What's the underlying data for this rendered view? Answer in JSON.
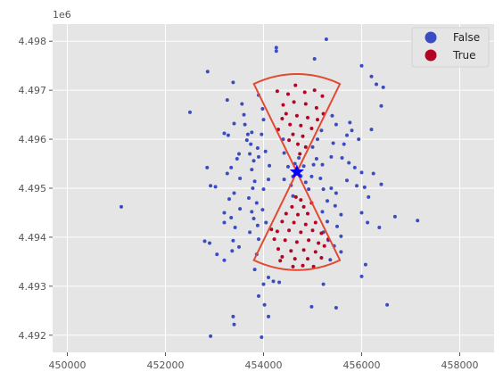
{
  "chart_data": {
    "type": "scatter",
    "title": "",
    "xlabel": "",
    "ylabel": "",
    "xlim": [
      449700,
      458700
    ],
    "ylim": [
      4491650,
      4498350
    ],
    "x_ticks": [
      450000,
      452000,
      454000,
      456000,
      458000
    ],
    "y_ticks": [
      4492000,
      4493000,
      4494000,
      4495000,
      4496000,
      4497000,
      4498000
    ],
    "x_tick_labels": [
      "450000",
      "452000",
      "454000",
      "456000",
      "458000"
    ],
    "y_tick_labels": [
      "4.492",
      "4.493",
      "4.494",
      "4.495",
      "4.496",
      "4.497",
      "4.498"
    ],
    "y_offset_label": "1e6",
    "grid": true,
    "legend_position": "top-right",
    "legend": [
      {
        "label": "False",
        "color": "#3b4cc0"
      },
      {
        "label": "True",
        "color": "#b40426"
      }
    ],
    "center": {
      "x": 454680,
      "y": 4495330,
      "marker": "star",
      "color": "#0000ff"
    },
    "sector_outline_color": "#e24a33",
    "sectors": [
      {
        "direction": "north",
        "inner_radius": 0,
        "outer_radius": 2000,
        "start_angle_deg": 64,
        "end_angle_deg": 116
      },
      {
        "direction": "south",
        "inner_radius": 0,
        "outer_radius": 2000,
        "start_angle_deg": 244,
        "end_angle_deg": 296
      }
    ],
    "series": [
      {
        "name": "False",
        "color": "#3b4cc0",
        "points": [
          [
            451100,
            4494620
          ],
          [
            452500,
            4496550
          ],
          [
            452860,
            4497380
          ],
          [
            452850,
            4495420
          ],
          [
            452920,
            4495050
          ],
          [
            453020,
            4495030
          ],
          [
            452800,
            4493920
          ],
          [
            452900,
            4493880
          ],
          [
            453050,
            4493650
          ],
          [
            453200,
            4493530
          ],
          [
            452920,
            4491980
          ],
          [
            453380,
            4492380
          ],
          [
            453400,
            4492220
          ],
          [
            453260,
            4496800
          ],
          [
            453380,
            4497160
          ],
          [
            453200,
            4496120
          ],
          [
            453280,
            4496080
          ],
          [
            453400,
            4496320
          ],
          [
            453460,
            4495600
          ],
          [
            453500,
            4495700
          ],
          [
            453260,
            4495300
          ],
          [
            453340,
            4495420
          ],
          [
            453400,
            4494900
          ],
          [
            453300,
            4494780
          ],
          [
            453200,
            4494500
          ],
          [
            453340,
            4494400
          ],
          [
            453200,
            4494300
          ],
          [
            453380,
            4493930
          ],
          [
            453360,
            4493720
          ],
          [
            453500,
            4493800
          ],
          [
            453420,
            4494200
          ],
          [
            453520,
            4494580
          ],
          [
            453520,
            4495200
          ],
          [
            453620,
            4496300
          ],
          [
            453600,
            4496500
          ],
          [
            453560,
            4496720
          ],
          [
            453680,
            4496100
          ],
          [
            453660,
            4495980
          ],
          [
            453760,
            4496140
          ],
          [
            453740,
            4495900
          ],
          [
            453720,
            4495700
          ],
          [
            453800,
            4495560
          ],
          [
            453760,
            4495380
          ],
          [
            453880,
            4495820
          ],
          [
            453900,
            4495640
          ],
          [
            453820,
            4495140
          ],
          [
            453780,
            4495000
          ],
          [
            453700,
            4494800
          ],
          [
            453860,
            4494700
          ],
          [
            453760,
            4494520
          ],
          [
            453800,
            4494380
          ],
          [
            453880,
            4494240
          ],
          [
            453720,
            4494100
          ],
          [
            453900,
            4493960
          ],
          [
            453860,
            4493650
          ],
          [
            453820,
            4493340
          ],
          [
            453900,
            4496900
          ],
          [
            453980,
            4496620
          ],
          [
            454000,
            4496400
          ],
          [
            453960,
            4496100
          ],
          [
            454040,
            4495750
          ],
          [
            454120,
            4495460
          ],
          [
            454100,
            4495180
          ],
          [
            454000,
            4494980
          ],
          [
            453980,
            4494560
          ],
          [
            454050,
            4494300
          ],
          [
            454000,
            4493040
          ],
          [
            453900,
            4492800
          ],
          [
            454020,
            4492620
          ],
          [
            453960,
            4491960
          ],
          [
            454100,
            4493180
          ],
          [
            454200,
            4493100
          ],
          [
            454320,
            4493080
          ],
          [
            454260,
            4497870
          ],
          [
            454260,
            4497800
          ],
          [
            454400,
            4496000
          ],
          [
            454420,
            4495720
          ],
          [
            454500,
            4495440
          ],
          [
            454420,
            4495180
          ],
          [
            454560,
            4495060
          ],
          [
            454600,
            4494840
          ],
          [
            454640,
            4495500
          ],
          [
            454720,
            4495620
          ],
          [
            454820,
            4495450
          ],
          [
            454860,
            4495120
          ],
          [
            454920,
            4494980
          ],
          [
            454980,
            4495240
          ],
          [
            455020,
            4495480
          ],
          [
            455000,
            4495840
          ],
          [
            455100,
            4496000
          ],
          [
            455180,
            4496180
          ],
          [
            455080,
            4495600
          ],
          [
            455200,
            4495480
          ],
          [
            455160,
            4495200
          ],
          [
            455220,
            4494980
          ],
          [
            455300,
            4494740
          ],
          [
            455200,
            4494520
          ],
          [
            455300,
            4494320
          ],
          [
            455220,
            4494100
          ],
          [
            455320,
            4493940
          ],
          [
            455380,
            4495640
          ],
          [
            455420,
            4495920
          ],
          [
            455400,
            4496480
          ],
          [
            455480,
            4496300
          ],
          [
            455380,
            4495000
          ],
          [
            455480,
            4494900
          ],
          [
            455460,
            4494640
          ],
          [
            455580,
            4494460
          ],
          [
            455500,
            4494220
          ],
          [
            455580,
            4494020
          ],
          [
            455600,
            4495620
          ],
          [
            455640,
            4495900
          ],
          [
            455700,
            4496080
          ],
          [
            455760,
            4496340
          ],
          [
            455800,
            4496180
          ],
          [
            455740,
            4495520
          ],
          [
            455860,
            4495420
          ],
          [
            455700,
            4495160
          ],
          [
            455900,
            4495050
          ],
          [
            455940,
            4496000
          ],
          [
            456000,
            4495320
          ],
          [
            456060,
            4495020
          ],
          [
            456140,
            4494820
          ],
          [
            456000,
            4494500
          ],
          [
            456120,
            4494300
          ],
          [
            456080,
            4493440
          ],
          [
            456000,
            4493200
          ],
          [
            456000,
            4497500
          ],
          [
            456200,
            4497280
          ],
          [
            456300,
            4497120
          ],
          [
            456400,
            4496680
          ],
          [
            456440,
            4497060
          ],
          [
            456200,
            4496200
          ],
          [
            456240,
            4495300
          ],
          [
            456400,
            4495080
          ],
          [
            456360,
            4494200
          ],
          [
            456520,
            4492620
          ],
          [
            456680,
            4494420
          ],
          [
            457140,
            4494340
          ],
          [
            455480,
            4492560
          ],
          [
            455280,
            4498040
          ],
          [
            455040,
            4497640
          ],
          [
            455220,
            4493040
          ],
          [
            454980,
            4492580
          ],
          [
            455440,
            4493820
          ],
          [
            455580,
            4493700
          ],
          [
            455360,
            4493540
          ],
          [
            454100,
            4492380
          ],
          [
            454680,
            4495380
          ],
          [
            454760,
            4495250
          ],
          [
            454600,
            4495240
          ]
        ]
      },
      {
        "name": "True",
        "color": "#b40426",
        "points": [
          [
            454280,
            4496980
          ],
          [
            454500,
            4496920
          ],
          [
            454650,
            4497100
          ],
          [
            454840,
            4496960
          ],
          [
            455040,
            4497000
          ],
          [
            455200,
            4496880
          ],
          [
            454400,
            4496700
          ],
          [
            454620,
            4496760
          ],
          [
            454860,
            4496720
          ],
          [
            455080,
            4496640
          ],
          [
            454460,
            4496520
          ],
          [
            454680,
            4496480
          ],
          [
            454900,
            4496440
          ],
          [
            455100,
            4496400
          ],
          [
            454540,
            4496300
          ],
          [
            454760,
            4496280
          ],
          [
            454980,
            4496220
          ],
          [
            454600,
            4496100
          ],
          [
            454800,
            4496060
          ],
          [
            454700,
            4495900
          ],
          [
            454860,
            4495840
          ],
          [
            454740,
            4495700
          ],
          [
            454380,
            4496420
          ],
          [
            455220,
            4496520
          ],
          [
            454300,
            4496200
          ],
          [
            454520,
            4495980
          ],
          [
            454660,
            4494820
          ],
          [
            454760,
            4494760
          ],
          [
            454580,
            4494620
          ],
          [
            454820,
            4494620
          ],
          [
            454460,
            4494480
          ],
          [
            454700,
            4494460
          ],
          [
            454900,
            4494480
          ],
          [
            454380,
            4494320
          ],
          [
            454620,
            4494300
          ],
          [
            454860,
            4494260
          ],
          [
            455060,
            4494300
          ],
          [
            454280,
            4494120
          ],
          [
            454520,
            4494140
          ],
          [
            454760,
            4494100
          ],
          [
            455000,
            4494140
          ],
          [
            455180,
            4494080
          ],
          [
            454220,
            4493960
          ],
          [
            454440,
            4493940
          ],
          [
            454680,
            4493900
          ],
          [
            454920,
            4493940
          ],
          [
            455120,
            4493880
          ],
          [
            454300,
            4493760
          ],
          [
            454560,
            4493720
          ],
          [
            454820,
            4493740
          ],
          [
            455060,
            4493700
          ],
          [
            455240,
            4493820
          ],
          [
            454160,
            4494160
          ],
          [
            454380,
            4493600
          ],
          [
            454640,
            4493560
          ],
          [
            454900,
            4493560
          ],
          [
            455180,
            4493580
          ],
          [
            455020,
            4493400
          ],
          [
            454800,
            4493420
          ],
          [
            454600,
            4493400
          ],
          [
            454980,
            4494700
          ],
          [
            454340,
            4493520
          ],
          [
            455320,
            4493960
          ]
        ]
      }
    ]
  }
}
